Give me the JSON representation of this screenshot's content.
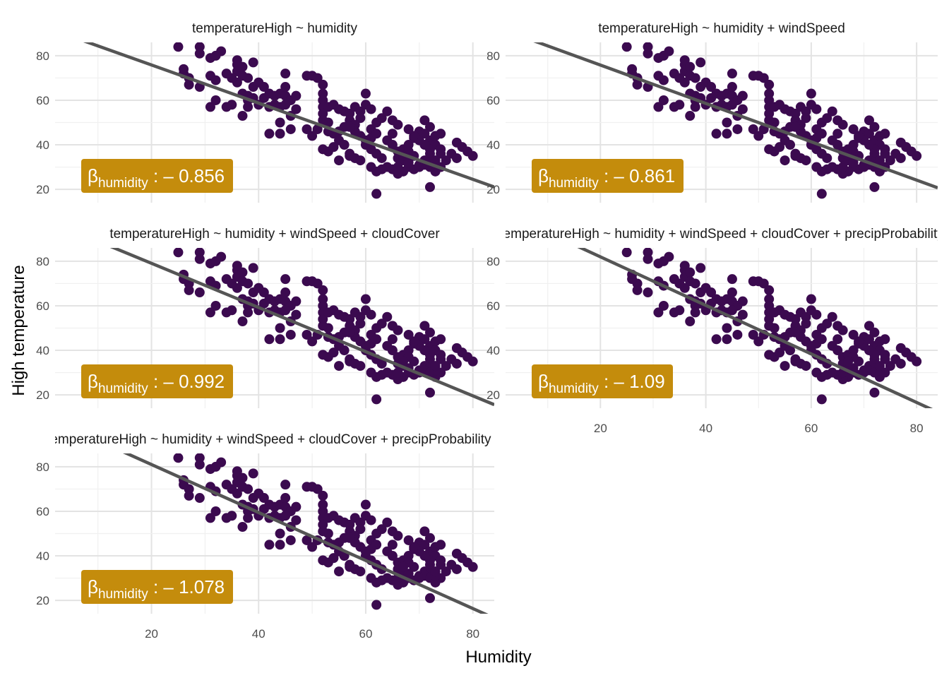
{
  "chart_data": {
    "type": "scatter",
    "layout": "facet-grid",
    "xlabel": "Humidity",
    "ylabel": "High temperature",
    "xlim": [
      2,
      84
    ],
    "ylim": [
      14,
      86
    ],
    "x_ticks": [
      20,
      40,
      60,
      80
    ],
    "y_ticks": [
      20,
      40,
      60,
      80
    ],
    "grid": true,
    "point_color": "#3b0a4f",
    "line_color": "#555555",
    "badge_color": "#c48c0c",
    "panels": [
      {
        "strip": "temperatureHigh ~ humidity",
        "coef_symbol": "β",
        "coef_subscript": "humidity",
        "coef_value": ": – 0.856",
        "fit": {
          "x0": 2,
          "y0": 91.26,
          "x1": 84,
          "y1": 21.07
        },
        "show_x_ticks": false
      },
      {
        "strip": "temperatureHigh ~ humidity + windSpeed",
        "coef_symbol": "β",
        "coef_subscript": "humidity",
        "coef_value": ": – 0.861",
        "fit": {
          "x0": 2,
          "y0": 91.3,
          "x1": 84,
          "y1": 20.7
        },
        "show_x_ticks": false
      },
      {
        "strip": "temperatureHigh ~ humidity + windSpeed + cloudCover",
        "coef_symbol": "β",
        "coef_subscript": "humidity",
        "coef_value": ": – 0.992",
        "fit": {
          "x0": 2,
          "y0": 96.93,
          "x1": 84,
          "y1": 15.59
        },
        "show_x_ticks": false
      },
      {
        "strip": "temperatureHigh ~ humidity + windSpeed + cloudCover + precipProbability",
        "coef_symbol": "β",
        "coef_subscript": "humidity",
        "coef_value": ": – 1.09",
        "fit": {
          "x0": 2,
          "y0": 101.6,
          "x1": 84,
          "y1": 12.22
        },
        "show_x_ticks": true
      },
      {
        "strip": "temperatureHigh ~ humidity + windSpeed + cloudCover + precipProbability + ",
        "coef_symbol": "β",
        "coef_subscript": "humidity",
        "coef_value": ": – 1.078",
        "fit": {
          "x0": 2,
          "y0": 100.42,
          "x1": 84,
          "y1": 12.02
        },
        "show_x_ticks": true
      }
    ],
    "points": [
      [
        25,
        84
      ],
      [
        29,
        84
      ],
      [
        29,
        81
      ],
      [
        31,
        79
      ],
      [
        33,
        82
      ],
      [
        32,
        80
      ],
      [
        26,
        74
      ],
      [
        27,
        70
      ],
      [
        27,
        67
      ],
      [
        29,
        66
      ],
      [
        26,
        72
      ],
      [
        31,
        71
      ],
      [
        32,
        69
      ],
      [
        34,
        72
      ],
      [
        36,
        73
      ],
      [
        36,
        76
      ],
      [
        36,
        78
      ],
      [
        37,
        75
      ],
      [
        37,
        71
      ],
      [
        36,
        68
      ],
      [
        39,
        77
      ],
      [
        35,
        70
      ],
      [
        38,
        70
      ],
      [
        39,
        66
      ],
      [
        40,
        68
      ],
      [
        41,
        66
      ],
      [
        37,
        63
      ],
      [
        38,
        62
      ],
      [
        39,
        61
      ],
      [
        41,
        61
      ],
      [
        42,
        63
      ],
      [
        43,
        62
      ],
      [
        44,
        63
      ],
      [
        45,
        62
      ],
      [
        45,
        66
      ],
      [
        45,
        72
      ],
      [
        46,
        60
      ],
      [
        47,
        62
      ],
      [
        42,
        57
      ],
      [
        43,
        58
      ],
      [
        44,
        57
      ],
      [
        45,
        58
      ],
      [
        38,
        60
      ],
      [
        35,
        58
      ],
      [
        38,
        57
      ],
      [
        40,
        58
      ],
      [
        31,
        57
      ],
      [
        32,
        60
      ],
      [
        34,
        57
      ],
      [
        37,
        53
      ],
      [
        42,
        45
      ],
      [
        44,
        45
      ],
      [
        44,
        50
      ],
      [
        46,
        53
      ],
      [
        47,
        56
      ],
      [
        46,
        47
      ],
      [
        49,
        71
      ],
      [
        50,
        71
      ],
      [
        51,
        70
      ],
      [
        52,
        67
      ],
      [
        52,
        63
      ],
      [
        52,
        60
      ],
      [
        52,
        57
      ],
      [
        52,
        54
      ],
      [
        53,
        57
      ],
      [
        54,
        58
      ],
      [
        55,
        56
      ],
      [
        56,
        55
      ],
      [
        57,
        54
      ],
      [
        58,
        57
      ],
      [
        59,
        55
      ],
      [
        60,
        63
      ],
      [
        60,
        58
      ],
      [
        61,
        56
      ],
      [
        59,
        52
      ],
      [
        57,
        51
      ],
      [
        58,
        49
      ],
      [
        56,
        48
      ],
      [
        55,
        46
      ],
      [
        54,
        45
      ],
      [
        53,
        46
      ],
      [
        53,
        50
      ],
      [
        52,
        51
      ],
      [
        51,
        47
      ],
      [
        49,
        47
      ],
      [
        50,
        44
      ],
      [
        52,
        38
      ],
      [
        53,
        37
      ],
      [
        54,
        39
      ],
      [
        55,
        42
      ],
      [
        56,
        40
      ],
      [
        57,
        35
      ],
      [
        55,
        33
      ],
      [
        57,
        36
      ],
      [
        58,
        34
      ],
      [
        59,
        33
      ],
      [
        60,
        40
      ],
      [
        61,
        43
      ],
      [
        61,
        47
      ],
      [
        62,
        45
      ],
      [
        62,
        50
      ],
      [
        63,
        52
      ],
      [
        64,
        55
      ],
      [
        65,
        51
      ],
      [
        66,
        49
      ],
      [
        65,
        45
      ],
      [
        64,
        42
      ],
      [
        65,
        40
      ],
      [
        66,
        37
      ],
      [
        66,
        34
      ],
      [
        67,
        33
      ],
      [
        68,
        30
      ],
      [
        67,
        38
      ],
      [
        68,
        40
      ],
      [
        69,
        43
      ],
      [
        70,
        46
      ],
      [
        71,
        51
      ],
      [
        72,
        48
      ],
      [
        71,
        45
      ],
      [
        72,
        42
      ],
      [
        73,
        44
      ],
      [
        74,
        45
      ],
      [
        73,
        40
      ],
      [
        72,
        36
      ],
      [
        71,
        33
      ],
      [
        70,
        31
      ],
      [
        69,
        29
      ],
      [
        68,
        32
      ],
      [
        67,
        28
      ],
      [
        66,
        27
      ],
      [
        65,
        29
      ],
      [
        64,
        30
      ],
      [
        63,
        29
      ],
      [
        62,
        28
      ],
      [
        61,
        30
      ],
      [
        62,
        18
      ],
      [
        72,
        21
      ],
      [
        73,
        28
      ],
      [
        74,
        30
      ],
      [
        75,
        33
      ],
      [
        74,
        38
      ],
      [
        76,
        36
      ],
      [
        77,
        41
      ],
      [
        78,
        39
      ],
      [
        79,
        37
      ],
      [
        80,
        35
      ],
      [
        77,
        34
      ],
      [
        72,
        32
      ],
      [
        71,
        31
      ],
      [
        70,
        30
      ],
      [
        69,
        35
      ],
      [
        68,
        37
      ],
      [
        67,
        35
      ],
      [
        66,
        30
      ],
      [
        72,
        30
      ],
      [
        73,
        31
      ],
      [
        74,
        36
      ],
      [
        73,
        33
      ],
      [
        72,
        38
      ],
      [
        71,
        40
      ],
      [
        70,
        42
      ],
      [
        69,
        44
      ],
      [
        68,
        47
      ],
      [
        63,
        34
      ],
      [
        62,
        36
      ],
      [
        61,
        38
      ],
      [
        60,
        42
      ],
      [
        59,
        44
      ],
      [
        58,
        46
      ],
      [
        57,
        48
      ]
    ]
  },
  "axis_titles": {
    "x": "Humidity",
    "y": "High temperature"
  }
}
